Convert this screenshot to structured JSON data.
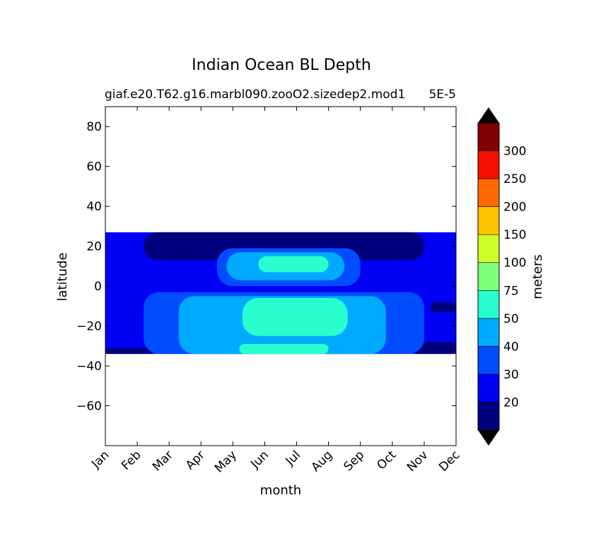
{
  "chart_data": {
    "type": "heatmap",
    "title": "Indian Ocean BL Depth",
    "subtitle_left": "giaf.e20.T62.g16.marbl090.zooO2.sizedep2.mod1",
    "subtitle_right": "5E-5",
    "xlabel": "month",
    "ylabel": "latitude",
    "x_categories": [
      "Jan",
      "Feb",
      "Mar",
      "Apr",
      "May",
      "Jun",
      "Jul",
      "Aug",
      "Sep",
      "Oct",
      "Nov",
      "Dec"
    ],
    "ylim": [
      -80,
      90
    ],
    "y_ticks": [
      80,
      60,
      40,
      20,
      0,
      -20,
      -40,
      -60
    ],
    "data_lat_range": [
      -34,
      27
    ],
    "grid": false,
    "colorbar": {
      "label": "meters",
      "levels": [
        20,
        30,
        40,
        50,
        75,
        100,
        150,
        200,
        250,
        300
      ],
      "tick_labels": [
        "20",
        "30",
        "40",
        "50",
        "75",
        "100",
        "150",
        "200",
        "250",
        "300"
      ],
      "colors": [
        "#00007f",
        "#0000f5",
        "#004cff",
        "#00aaff",
        "#29ffce",
        "#7dff7a",
        "#ceff29",
        "#ffc400",
        "#ff6800",
        "#f50f00",
        "#7f0000"
      ],
      "extend_low_color": "#000000",
      "extend_high_color": "#000000"
    },
    "regions": [
      {
        "level_index": 1,
        "months": [
          0,
          11
        ],
        "lat_range": [
          -34,
          27
        ]
      },
      {
        "level_index": 0,
        "months": [
          1.2,
          10
        ],
        "lat_range": [
          13,
          27
        ]
      },
      {
        "level_index": 0,
        "months": [
          1.6,
          3.2
        ],
        "lat_range": [
          -13,
          -4
        ]
      },
      {
        "level_index": 0,
        "months": [
          10.2,
          11
        ],
        "lat_range": [
          -13,
          -8
        ]
      },
      {
        "level_index": 0,
        "months": [
          0,
          1.5
        ],
        "lat_range": [
          -34,
          -31
        ]
      },
      {
        "level_index": 0,
        "months": [
          9.6,
          11
        ],
        "lat_range": [
          -34,
          -28
        ]
      },
      {
        "level_index": 2,
        "months": [
          3.5,
          8
        ],
        "lat_range": [
          0,
          19
        ]
      },
      {
        "level_index": 2,
        "months": [
          1.2,
          10
        ],
        "lat_range": [
          -34,
          -3
        ]
      },
      {
        "level_index": 3,
        "months": [
          3.8,
          7.5
        ],
        "lat_range": [
          3,
          17
        ]
      },
      {
        "level_index": 3,
        "months": [
          2.3,
          8.8
        ],
        "lat_range": [
          -34,
          -5
        ]
      },
      {
        "level_index": 4,
        "months": [
          4.8,
          7
        ],
        "lat_range": [
          7,
          15
        ]
      },
      {
        "level_index": 4,
        "months": [
          4.3,
          7.6
        ],
        "lat_range": [
          -25,
          -6
        ]
      },
      {
        "level_index": 4,
        "months": [
          4.2,
          7
        ],
        "lat_range": [
          -34,
          -29
        ]
      }
    ]
  }
}
